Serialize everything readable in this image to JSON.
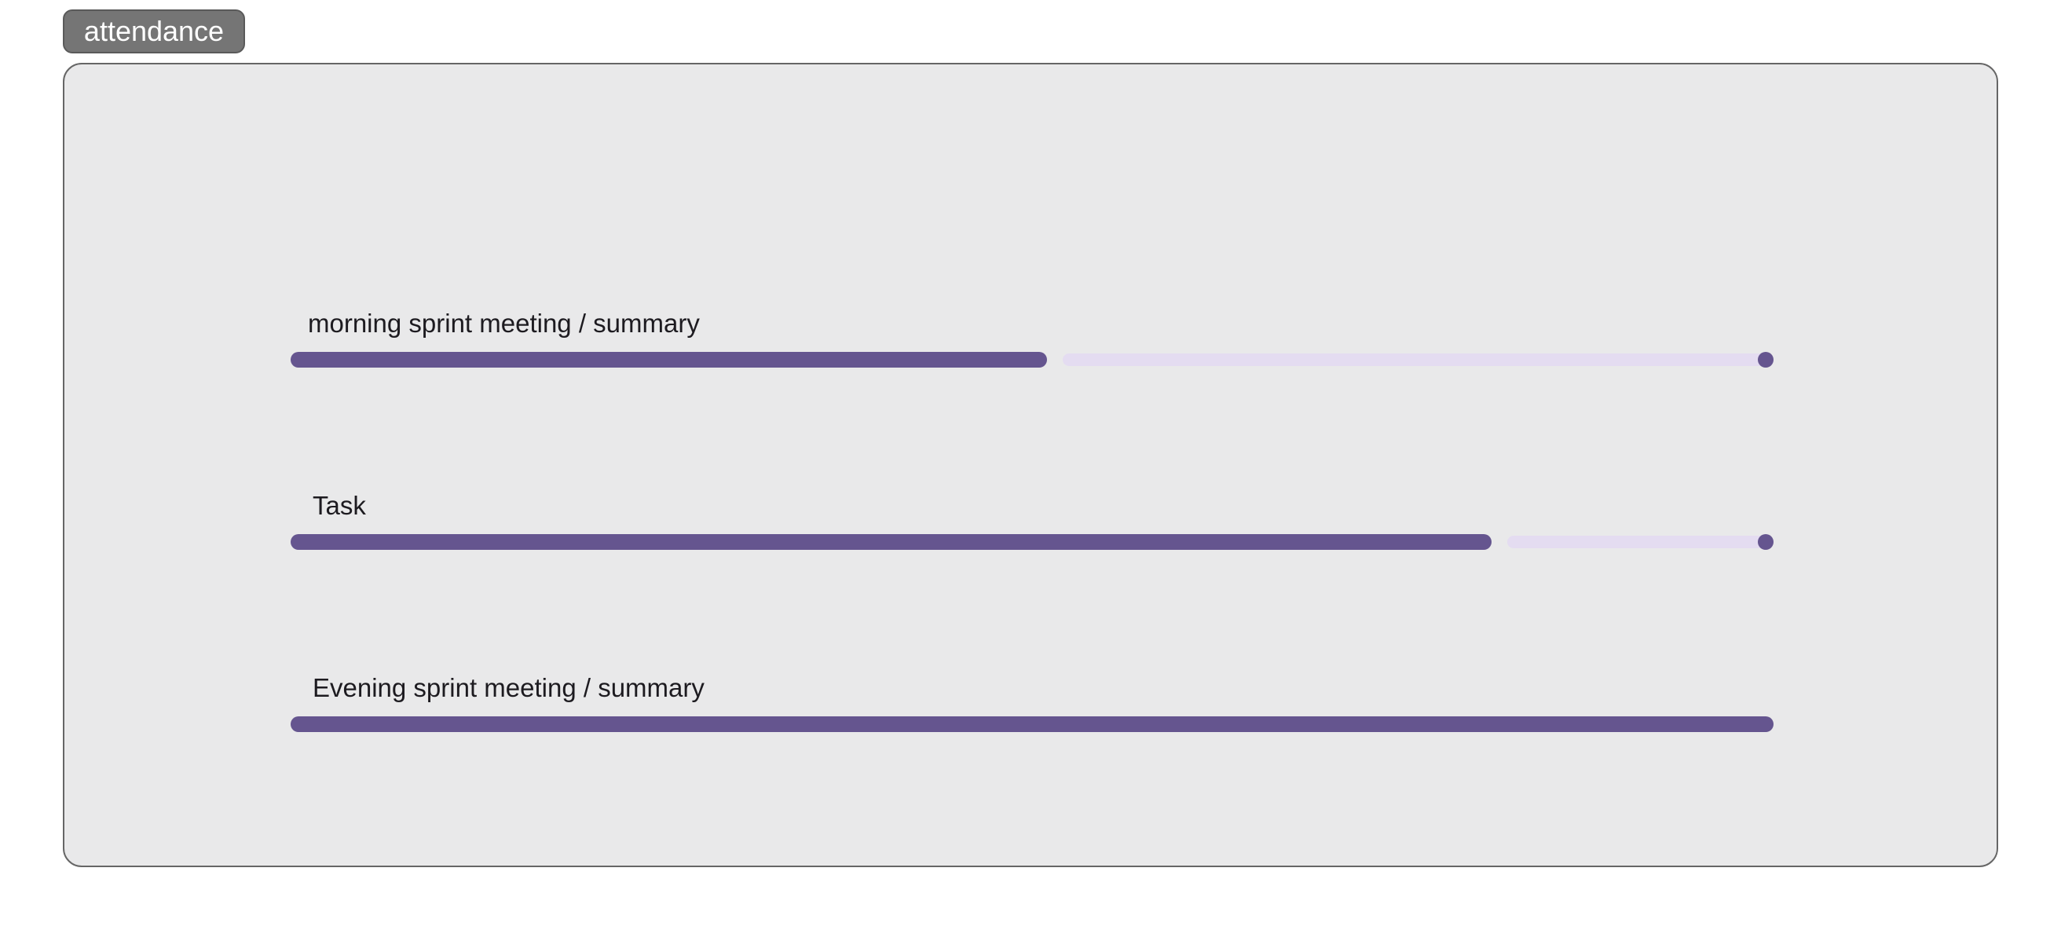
{
  "tab": {
    "label": "attendance"
  },
  "progress_rows": [
    {
      "label": "morning sprint meeting / summary",
      "value": 0.51
    },
    {
      "label": "Task",
      "value": 0.81
    },
    {
      "label": "Evening sprint meeting / summary",
      "value": 1.0
    }
  ],
  "colors": {
    "active": "#65558f",
    "inactive": "#e4dcf1",
    "panel": "#e9e9ea",
    "tab": "#757575"
  }
}
